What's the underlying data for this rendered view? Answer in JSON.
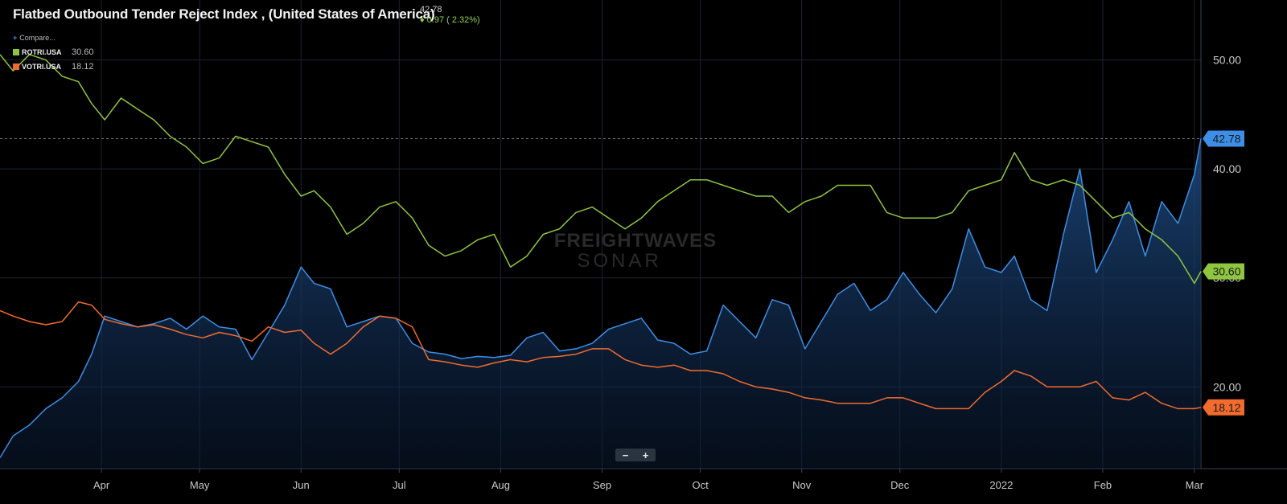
{
  "header": {
    "title": "Flatbed Outbound Tender Reject Index , (United States of America)",
    "last_value": "42.78",
    "change": "♦ 0.97 ( 2.32%)"
  },
  "legend": {
    "compare_label": "Compare...",
    "items": [
      {
        "name": "ROTRI.USA",
        "value": "30.60",
        "color": "#8fc63f"
      },
      {
        "name": "VOTRI.USA",
        "value": "18.12",
        "color": "#f26b2e"
      }
    ]
  },
  "watermark": {
    "line1": "FREIGHTWAVES",
    "line2": "SONAR"
  },
  "zoom": {
    "minus": "−",
    "plus": "+"
  },
  "chart_data": {
    "type": "line",
    "x_axis": {
      "labels": [
        "Apr",
        "May",
        "Jun",
        "Jul",
        "Aug",
        "Sep",
        "Oct",
        "Nov",
        "Dec",
        "2022",
        "Feb",
        "Mar"
      ],
      "range": [
        "2021-03-01",
        "2022-03-03"
      ]
    },
    "y_axis": {
      "ticks": [
        "20.00",
        "30.00",
        "40.00",
        "50.00"
      ],
      "ylim": [
        12.5,
        55.5
      ],
      "position": "right"
    },
    "reference_line": {
      "value": 42.78,
      "style": "dashed"
    },
    "series": [
      {
        "name": "",
        "color": "#3d8ee6",
        "style": "area",
        "end_label": "42.78",
        "x": [
          "2021-03-01",
          "2021-03-05",
          "2021-03-10",
          "2021-03-15",
          "2021-03-20",
          "2021-03-25",
          "2021-03-29",
          "2021-04-02",
          "2021-04-07",
          "2021-04-12",
          "2021-04-17",
          "2021-04-22",
          "2021-04-27",
          "2021-05-02",
          "2021-05-07",
          "2021-05-12",
          "2021-05-17",
          "2021-05-22",
          "2021-05-27",
          "2021-06-01",
          "2021-06-05",
          "2021-06-10",
          "2021-06-15",
          "2021-06-20",
          "2021-06-25",
          "2021-06-30",
          "2021-07-05",
          "2021-07-10",
          "2021-07-15",
          "2021-07-20",
          "2021-07-25",
          "2021-07-30",
          "2021-08-04",
          "2021-08-09",
          "2021-08-14",
          "2021-08-19",
          "2021-08-24",
          "2021-08-29",
          "2021-09-03",
          "2021-09-08",
          "2021-09-13",
          "2021-09-18",
          "2021-09-23",
          "2021-09-28",
          "2021-10-03",
          "2021-10-08",
          "2021-10-13",
          "2021-10-18",
          "2021-10-23",
          "2021-10-28",
          "2021-11-02",
          "2021-11-07",
          "2021-11-12",
          "2021-11-17",
          "2021-11-22",
          "2021-11-27",
          "2021-12-02",
          "2021-12-07",
          "2021-12-12",
          "2021-12-17",
          "2021-12-22",
          "2021-12-27",
          "2022-01-01",
          "2022-01-05",
          "2022-01-10",
          "2022-01-15",
          "2022-01-20",
          "2022-01-25",
          "2022-01-30",
          "2022-02-04",
          "2022-02-09",
          "2022-02-14",
          "2022-02-19",
          "2022-02-24",
          "2022-03-01",
          "2022-03-03"
        ],
        "values": [
          13.5,
          15.5,
          16.5,
          18.0,
          19.0,
          20.5,
          23.0,
          26.5,
          26.0,
          25.5,
          25.8,
          26.3,
          25.3,
          26.5,
          25.5,
          25.3,
          22.5,
          25.0,
          27.5,
          31.0,
          29.5,
          29.0,
          25.5,
          26.0,
          26.5,
          26.3,
          24.0,
          23.2,
          23.0,
          22.6,
          22.8,
          22.7,
          22.9,
          24.5,
          25.0,
          23.3,
          23.5,
          24.0,
          25.3,
          25.8,
          26.3,
          24.3,
          24.0,
          23.0,
          23.3,
          27.5,
          26.0,
          24.5,
          28.0,
          27.5,
          23.5,
          26.0,
          28.5,
          29.5,
          27.0,
          28.0,
          30.5,
          28.5,
          26.8,
          29.0,
          34.5,
          31.0,
          30.5,
          32.0,
          28.0,
          27.0,
          34.0,
          40.0,
          30.5,
          33.5,
          37.0,
          32.0,
          37.0,
          35.0,
          39.5,
          42.78
        ]
      },
      {
        "name": "ROTRI.USA",
        "color": "#8fc63f",
        "style": "line",
        "end_label": "30.60",
        "x": [
          "2021-03-01",
          "2021-03-05",
          "2021-03-10",
          "2021-03-15",
          "2021-03-20",
          "2021-03-25",
          "2021-03-29",
          "2021-04-02",
          "2021-04-07",
          "2021-04-12",
          "2021-04-17",
          "2021-04-22",
          "2021-04-27",
          "2021-05-02",
          "2021-05-07",
          "2021-05-12",
          "2021-05-17",
          "2021-05-22",
          "2021-05-27",
          "2021-06-01",
          "2021-06-05",
          "2021-06-10",
          "2021-06-15",
          "2021-06-20",
          "2021-06-25",
          "2021-06-30",
          "2021-07-05",
          "2021-07-10",
          "2021-07-15",
          "2021-07-20",
          "2021-07-25",
          "2021-07-30",
          "2021-08-04",
          "2021-08-09",
          "2021-08-14",
          "2021-08-19",
          "2021-08-24",
          "2021-08-29",
          "2021-09-03",
          "2021-09-08",
          "2021-09-13",
          "2021-09-18",
          "2021-09-23",
          "2021-09-28",
          "2021-10-03",
          "2021-10-08",
          "2021-10-13",
          "2021-10-18",
          "2021-10-23",
          "2021-10-28",
          "2021-11-02",
          "2021-11-07",
          "2021-11-12",
          "2021-11-17",
          "2021-11-22",
          "2021-11-27",
          "2021-12-02",
          "2021-12-07",
          "2021-12-12",
          "2021-12-17",
          "2021-12-22",
          "2021-12-27",
          "2022-01-01",
          "2022-01-05",
          "2022-01-10",
          "2022-01-15",
          "2022-01-20",
          "2022-01-25",
          "2022-01-30",
          "2022-02-04",
          "2022-02-09",
          "2022-02-14",
          "2022-02-19",
          "2022-02-24",
          "2022-03-01",
          "2022-03-03"
        ],
        "values": [
          50.5,
          49.0,
          50.5,
          50.0,
          48.5,
          48.0,
          46.0,
          44.5,
          46.5,
          45.5,
          44.5,
          43.0,
          42.0,
          40.5,
          41.0,
          43.0,
          42.5,
          42.0,
          39.5,
          37.5,
          38.0,
          36.5,
          34.0,
          35.0,
          36.5,
          37.0,
          35.5,
          33.0,
          32.0,
          32.5,
          33.5,
          34.0,
          31.0,
          32.0,
          34.0,
          34.5,
          36.0,
          36.5,
          35.5,
          34.5,
          35.5,
          37.0,
          38.0,
          39.0,
          39.0,
          38.5,
          38.0,
          37.5,
          37.5,
          36.0,
          37.0,
          37.5,
          38.5,
          38.5,
          38.5,
          36.0,
          35.5,
          35.5,
          35.5,
          36.0,
          38.0,
          38.5,
          39.0,
          41.5,
          39.0,
          38.5,
          39.0,
          38.5,
          37.0,
          35.5,
          36.0,
          34.5,
          33.5,
          32.0,
          29.5,
          30.6
        ]
      },
      {
        "name": "VOTRI.USA",
        "color": "#f26b2e",
        "style": "line",
        "end_label": "18.12",
        "x": [
          "2021-03-01",
          "2021-03-05",
          "2021-03-10",
          "2021-03-15",
          "2021-03-20",
          "2021-03-25",
          "2021-03-29",
          "2021-04-02",
          "2021-04-07",
          "2021-04-12",
          "2021-04-17",
          "2021-04-22",
          "2021-04-27",
          "2021-05-02",
          "2021-05-07",
          "2021-05-12",
          "2021-05-17",
          "2021-05-22",
          "2021-05-27",
          "2021-06-01",
          "2021-06-05",
          "2021-06-10",
          "2021-06-15",
          "2021-06-20",
          "2021-06-25",
          "2021-06-30",
          "2021-07-05",
          "2021-07-10",
          "2021-07-15",
          "2021-07-20",
          "2021-07-25",
          "2021-07-30",
          "2021-08-04",
          "2021-08-09",
          "2021-08-14",
          "2021-08-19",
          "2021-08-24",
          "2021-08-29",
          "2021-09-03",
          "2021-09-08",
          "2021-09-13",
          "2021-09-18",
          "2021-09-23",
          "2021-09-28",
          "2021-10-03",
          "2021-10-08",
          "2021-10-13",
          "2021-10-18",
          "2021-10-23",
          "2021-10-28",
          "2021-11-02",
          "2021-11-07",
          "2021-11-12",
          "2021-11-17",
          "2021-11-22",
          "2021-11-27",
          "2021-12-02",
          "2021-12-07",
          "2021-12-12",
          "2021-12-17",
          "2021-12-22",
          "2021-12-27",
          "2022-01-01",
          "2022-01-05",
          "2022-01-10",
          "2022-01-15",
          "2022-01-20",
          "2022-01-25",
          "2022-01-30",
          "2022-02-04",
          "2022-02-09",
          "2022-02-14",
          "2022-02-19",
          "2022-02-24",
          "2022-03-01",
          "2022-03-03"
        ],
        "values": [
          27.0,
          26.5,
          26.0,
          25.7,
          26.0,
          27.8,
          27.5,
          26.2,
          25.8,
          25.5,
          25.7,
          25.3,
          24.8,
          24.5,
          25.0,
          24.7,
          24.2,
          25.5,
          25.0,
          25.2,
          24.0,
          23.0,
          24.0,
          25.5,
          26.5,
          26.3,
          25.5,
          22.5,
          22.3,
          22.0,
          21.8,
          22.2,
          22.5,
          22.3,
          22.7,
          22.8,
          23.0,
          23.5,
          23.5,
          22.5,
          22.0,
          21.8,
          22.0,
          21.5,
          21.5,
          21.2,
          20.5,
          20.0,
          19.8,
          19.5,
          19.0,
          18.8,
          18.5,
          18.5,
          18.5,
          19.0,
          19.0,
          18.5,
          18.0,
          18.0,
          18.0,
          19.5,
          20.5,
          21.5,
          21.0,
          20.0,
          20.0,
          20.0,
          20.5,
          19.0,
          18.8,
          19.5,
          18.5,
          18.0,
          18.0,
          18.12
        ]
      }
    ]
  }
}
